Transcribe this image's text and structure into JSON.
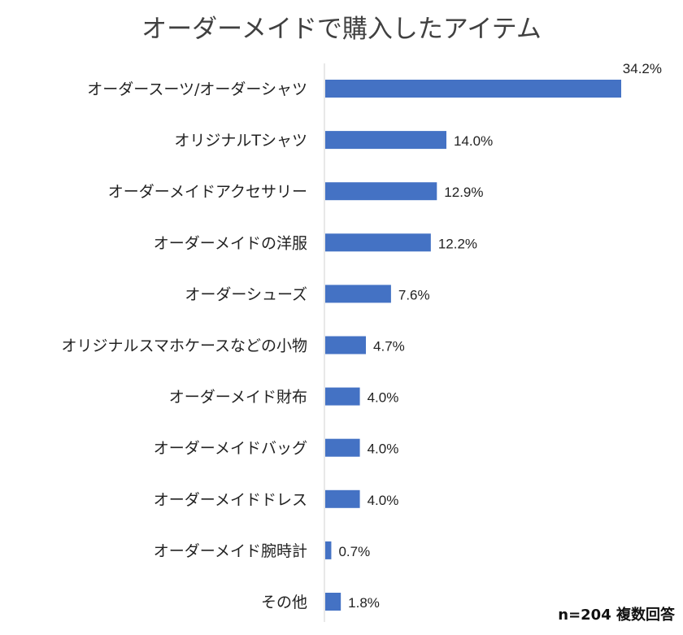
{
  "chart_data": {
    "type": "bar",
    "orientation": "horizontal",
    "title": "オーダーメイドで購入したアイテム",
    "categories": [
      "オーダースーツ/オーダーシャツ",
      "オリジナルTシャツ",
      "オーダーメイドアクセサリー",
      "オーダーメイドの洋服",
      "オーダーシューズ",
      "オリジナルスマホケースなどの小物",
      "オーダーメイド財布",
      "オーダーメイドバッグ",
      "オーダーメイドドレス",
      "オーダーメイド腕時計",
      "その他"
    ],
    "values": [
      34.2,
      14.0,
      12.9,
      12.2,
      7.6,
      4.7,
      4.0,
      4.0,
      4.0,
      0.7,
      1.8
    ],
    "value_labels": [
      "34.2%",
      "14.0%",
      "12.9%",
      "12.2%",
      "7.6%",
      "4.7%",
      "4.0%",
      "4.0%",
      "4.0%",
      "0.7%",
      "1.8%"
    ],
    "xlim": [
      0,
      34.2
    ],
    "grid": false,
    "bar_color": "#4472c4",
    "note": "n=204 複数回答"
  }
}
